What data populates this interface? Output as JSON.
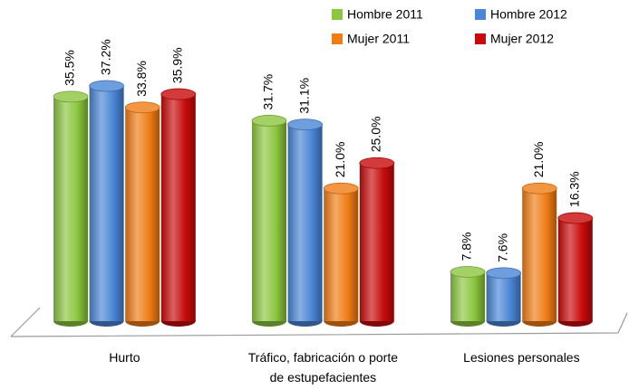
{
  "chart_data": {
    "type": "bar",
    "style": "3d-cylinder",
    "categories": [
      "Hurto",
      "Tráfico, fabricación o porte de estupefacientes",
      "Lesiones personales"
    ],
    "series": [
      {
        "name": "Hombre 2011",
        "color": "#8cc63e",
        "values": [
          35.5,
          31.7,
          7.8
        ],
        "value_labels": [
          "35.5%",
          "31.7%",
          "7.8%"
        ]
      },
      {
        "name": "Hombre 2012",
        "color": "#4a86d6",
        "values": [
          37.2,
          31.1,
          7.6
        ],
        "value_labels": [
          "37.2%",
          "31.1%",
          "7.6%"
        ]
      },
      {
        "name": "Mujer 2011",
        "color": "#f07c14",
        "values": [
          33.8,
          21.0,
          21.0
        ],
        "value_labels": [
          "33.8%",
          "21.0%",
          "21.0%"
        ]
      },
      {
        "name": "Mujer 2012",
        "color": "#c80a0a",
        "values": [
          35.9,
          25.0,
          16.3
        ],
        "value_labels": [
          "35.9%",
          "25.0%",
          "16.3%"
        ]
      }
    ],
    "legend": "top-right",
    "grid": false
  }
}
